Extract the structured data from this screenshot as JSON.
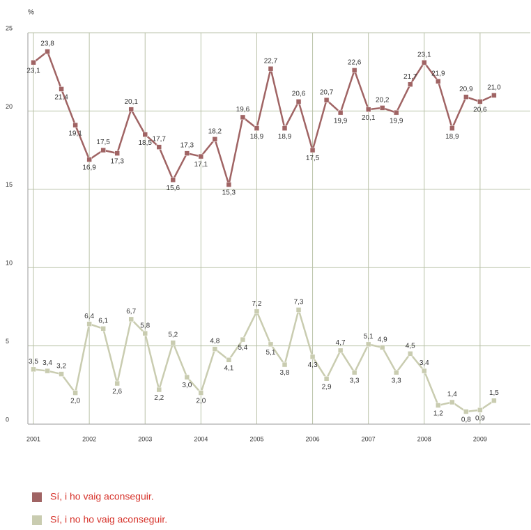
{
  "chart_data": {
    "type": "line",
    "y_unit": "%",
    "x": [
      2001,
      2001.25,
      2001.5,
      2001.75,
      2002,
      2002.25,
      2002.5,
      2002.75,
      2003,
      2003.25,
      2003.5,
      2003.75,
      2004,
      2004.25,
      2004.5,
      2004.75,
      2005,
      2005.25,
      2005.5,
      2005.75,
      2006,
      2006.25,
      2006.5,
      2006.75,
      2007,
      2007.25,
      2007.5,
      2007.75,
      2008,
      2008.25,
      2008.5,
      2008.75,
      2009,
      2009.25
    ],
    "series": [
      {
        "name": "Sí, i ho vaig aconseguir.",
        "color": "#a06464",
        "values": [
          23.1,
          23.8,
          21.4,
          19.1,
          16.9,
          17.5,
          17.3,
          20.1,
          18.5,
          17.7,
          15.6,
          17.3,
          17.1,
          18.2,
          15.3,
          19.6,
          18.9,
          22.7,
          18.9,
          20.6,
          17.5,
          20.7,
          19.9,
          22.6,
          20.1,
          20.2,
          19.9,
          21.7,
          23.1,
          21.9,
          18.9,
          20.9,
          20.6,
          21.0
        ],
        "value_labels": [
          "23,1",
          "23,8",
          "21,4",
          "19,1",
          "16,9",
          "17,5",
          "17,3",
          "20,1",
          "18,5",
          "17,7",
          "15,6",
          "17,3",
          "17,1",
          "18,2",
          "15,3",
          "19,6",
          "18,9",
          "22,7",
          "18,9",
          "20,6",
          "17,5",
          "20,7",
          "19,9",
          "22,6",
          "20,1",
          "20,2",
          "19,9",
          "21,7",
          "23,1",
          "21,9",
          "18,9",
          "20,9",
          "20,6",
          "21,0"
        ]
      },
      {
        "name": "Sí, i no ho vaig aconseguir.",
        "color": "#c9ccb0",
        "values": [
          3.5,
          3.4,
          3.2,
          2.0,
          6.4,
          6.1,
          2.6,
          6.7,
          5.8,
          2.2,
          5.2,
          3.0,
          2.0,
          4.8,
          4.1,
          5.4,
          7.2,
          5.1,
          3.8,
          7.3,
          4.3,
          2.9,
          4.7,
          3.3,
          5.1,
          4.9,
          3.3,
          4.5,
          3.4,
          1.2,
          1.4,
          0.8,
          0.9,
          1.5
        ],
        "value_labels": [
          "3,5",
          "3,4",
          "3,2",
          "2,0",
          "6,4",
          "6,1",
          "2,6",
          "6,7",
          "5,8",
          "2,2",
          "5,2",
          "3,0",
          "2,0",
          "4,8",
          "4,1",
          "5,4",
          "7,2",
          "5,1",
          "3,8",
          "7,3",
          "4,3",
          "2,9",
          "4,7",
          "3,3",
          "5,1",
          "4,9",
          "3,3",
          "4,5",
          "3,4",
          "1,2",
          "1,4",
          "0,8",
          "0,9",
          "1,5"
        ]
      }
    ],
    "xlim": [
      2000.9,
      2009.9
    ],
    "xticks": [
      2001,
      2002,
      2003,
      2004,
      2005,
      2006,
      2007,
      2008,
      2009
    ],
    "ylim": [
      0,
      25
    ],
    "yticks": [
      0,
      5,
      10,
      15,
      20,
      25
    ],
    "grid": true
  }
}
